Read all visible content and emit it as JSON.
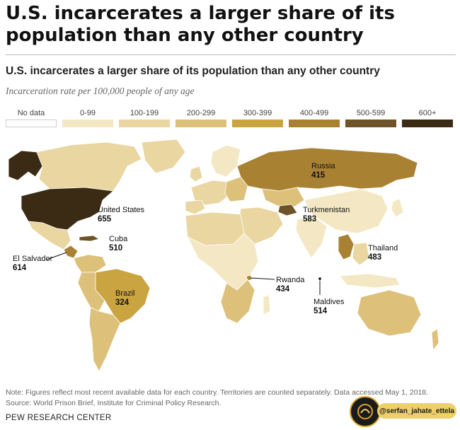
{
  "headline": "U.S. incarcerates a larger share of its population than any other country",
  "chart_data": {
    "type": "choropleth",
    "title": "U.S. incarcerates a larger share of its population than any other country",
    "subtitle": "Incarceration rate per 100,000 people of any age",
    "legend": [
      {
        "label": "No data",
        "color": "#ffffff"
      },
      {
        "label": "0-99",
        "color": "#f4e8c4"
      },
      {
        "label": "100-199",
        "color": "#ead6a0"
      },
      {
        "label": "200-299",
        "color": "#ddc07a"
      },
      {
        "label": "300-399",
        "color": "#caa440"
      },
      {
        "label": "400-499",
        "color": "#a98132"
      },
      {
        "label": "500-599",
        "color": "#6e5328"
      },
      {
        "label": "600+",
        "color": "#3b2b14"
      }
    ],
    "labels": [
      {
        "name": "United States",
        "value": 655,
        "color": "#3b2b14"
      },
      {
        "name": "Russia",
        "value": 415,
        "color": "#a98132"
      },
      {
        "name": "Turkmenistan",
        "value": 583,
        "color": "#6e5328"
      },
      {
        "name": "Cuba",
        "value": 510,
        "color": "#6e5328"
      },
      {
        "name": "El Salvador",
        "value": 614,
        "color": "#3b2b14"
      },
      {
        "name": "Thailand",
        "value": 483,
        "color": "#a98132"
      },
      {
        "name": "Brazil",
        "value": 324,
        "color": "#caa440"
      },
      {
        "name": "Rwanda",
        "value": 434,
        "color": "#a98132"
      },
      {
        "name": "Maldives",
        "value": 514,
        "color": "#6e5328"
      }
    ]
  },
  "notes": {
    "note": "Note: Figures reflect most recent available data for each country. Territories are counted separately. Data accessed May 1, 2018.",
    "source": "Source: World Prison Brief, Institute for Criminal Policy Research.",
    "org": "PEW RESEARCH CENTER"
  },
  "watermark": {
    "handle": "@serfan_jahate_ettela"
  },
  "colors": {
    "background": "#ffffff",
    "text": "#222222",
    "border": "#ffffff"
  }
}
